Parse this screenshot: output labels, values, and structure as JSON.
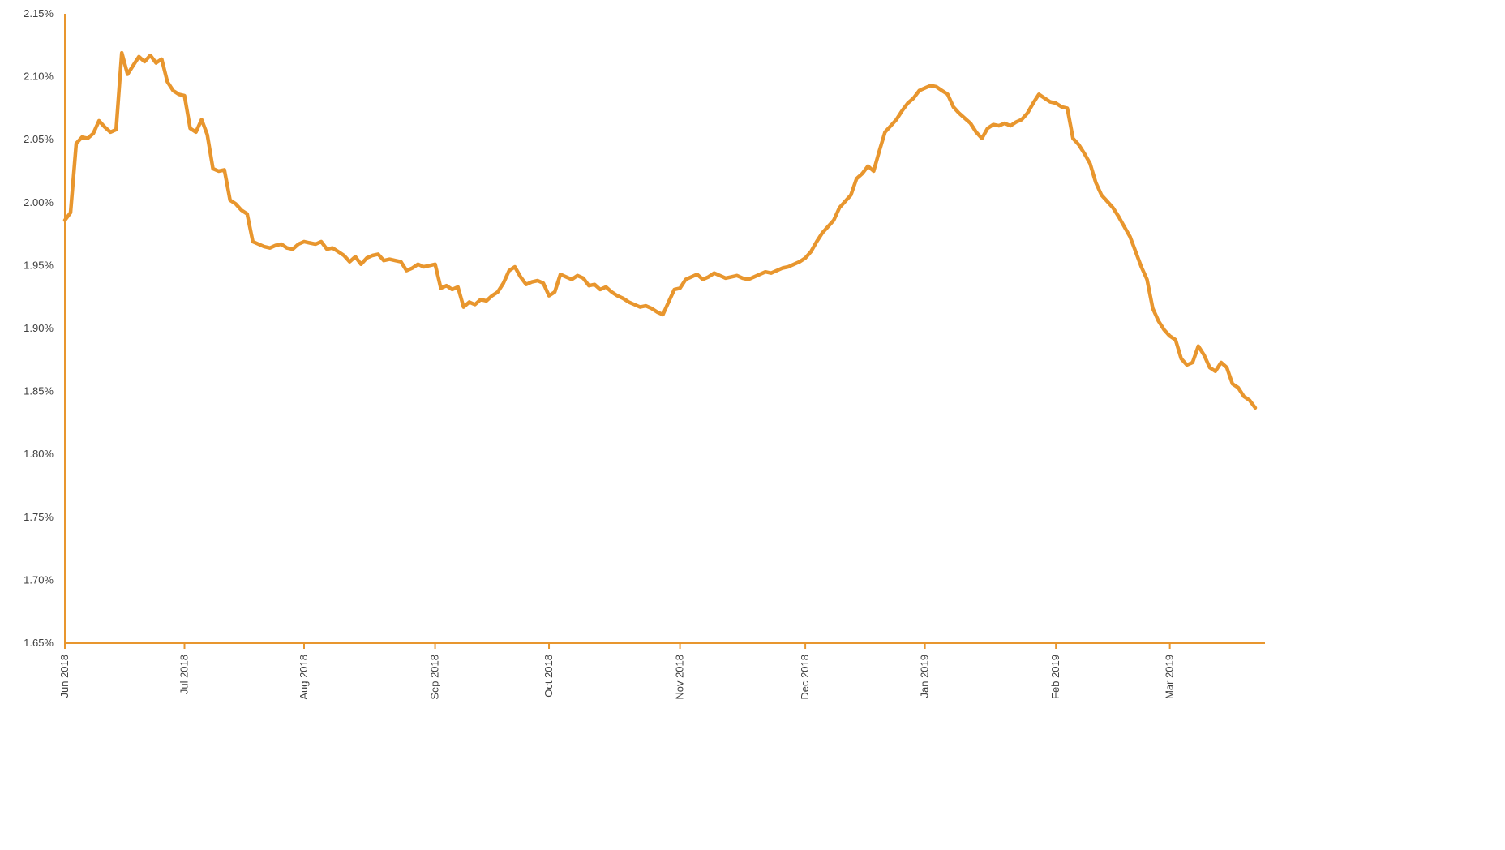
{
  "page": {
    "title": "Rate line chart"
  },
  "chart_data": {
    "type": "line",
    "title": "",
    "xlabel": "",
    "ylabel": "",
    "unit": "%",
    "legend": "none",
    "grid": false,
    "line_color": "#E8962E",
    "axis_color": "#E8962E",
    "label_color": "#404040",
    "ylim": [
      1.65,
      2.15
    ],
    "y_ticks": [
      "2.15%",
      "2.10%",
      "2.05%",
      "2.00%",
      "1.95%",
      "1.90%",
      "1.85%",
      "1.80%",
      "1.75%",
      "1.70%",
      "1.65%"
    ],
    "x_ticks": [
      {
        "label": "Jun 2018",
        "index": 0
      },
      {
        "label": "Jul 2018",
        "index": 21
      },
      {
        "label": "Aug 2018",
        "index": 42
      },
      {
        "label": "Sep 2018",
        "index": 65
      },
      {
        "label": "Oct 2018",
        "index": 85
      },
      {
        "label": "Nov 2018",
        "index": 108
      },
      {
        "label": "Dec 2018",
        "index": 130
      },
      {
        "label": "Jan 2019",
        "index": 151
      },
      {
        "label": "Feb 2019",
        "index": 174
      },
      {
        "label": "Mar 2019",
        "index": 194
      }
    ],
    "values": [
      1.986,
      1.992,
      2.047,
      2.052,
      2.051,
      2.055,
      2.065,
      2.06,
      2.056,
      2.058,
      2.119,
      2.102,
      2.109,
      2.116,
      2.112,
      2.117,
      2.111,
      2.114,
      2.096,
      2.089,
      2.086,
      2.085,
      2.059,
      2.056,
      2.066,
      2.054,
      2.027,
      2.025,
      2.026,
      2.002,
      1.999,
      1.994,
      1.991,
      1.969,
      1.967,
      1.965,
      1.964,
      1.966,
      1.967,
      1.964,
      1.963,
      1.967,
      1.969,
      1.968,
      1.967,
      1.969,
      1.963,
      1.964,
      1.961,
      1.958,
      1.953,
      1.957,
      1.951,
      1.956,
      1.958,
      1.959,
      1.954,
      1.955,
      1.954,
      1.953,
      1.946,
      1.948,
      1.951,
      1.949,
      1.95,
      1.951,
      1.932,
      1.934,
      1.931,
      1.933,
      1.917,
      1.921,
      1.919,
      1.923,
      1.922,
      1.926,
      1.929,
      1.936,
      1.946,
      1.949,
      1.941,
      1.935,
      1.937,
      1.938,
      1.936,
      1.926,
      1.929,
      1.943,
      1.941,
      1.939,
      1.942,
      1.94,
      1.934,
      1.935,
      1.931,
      1.933,
      1.929,
      1.926,
      1.924,
      1.921,
      1.919,
      1.917,
      1.918,
      1.916,
      1.913,
      1.911,
      1.921,
      1.931,
      1.932,
      1.939,
      1.941,
      1.943,
      1.939,
      1.941,
      1.944,
      1.942,
      1.94,
      1.941,
      1.942,
      1.94,
      1.939,
      1.941,
      1.943,
      1.945,
      1.944,
      1.946,
      1.948,
      1.949,
      1.951,
      1.953,
      1.956,
      1.961,
      1.969,
      1.976,
      1.981,
      1.986,
      1.996,
      2.001,
      2.006,
      2.019,
      2.023,
      2.029,
      2.025,
      2.041,
      2.056,
      2.061,
      2.066,
      2.073,
      2.079,
      2.083,
      2.089,
      2.091,
      2.093,
      2.092,
      2.089,
      2.086,
      2.076,
      2.071,
      2.067,
      2.063,
      2.056,
      2.051,
      2.059,
      2.062,
      2.061,
      2.063,
      2.061,
      2.064,
      2.066,
      2.071,
      2.079,
      2.086,
      2.083,
      2.08,
      2.079,
      2.076,
      2.075,
      2.051,
      2.046,
      2.039,
      2.031,
      2.016,
      2.006,
      2.001,
      1.996,
      1.989,
      1.981,
      1.973,
      1.961,
      1.949,
      1.939,
      1.916,
      1.906,
      1.899,
      1.894,
      1.891,
      1.876,
      1.871,
      1.873,
      1.886,
      1.879,
      1.869,
      1.866,
      1.873,
      1.869,
      1.856,
      1.853,
      1.846,
      1.843,
      1.837
    ]
  }
}
